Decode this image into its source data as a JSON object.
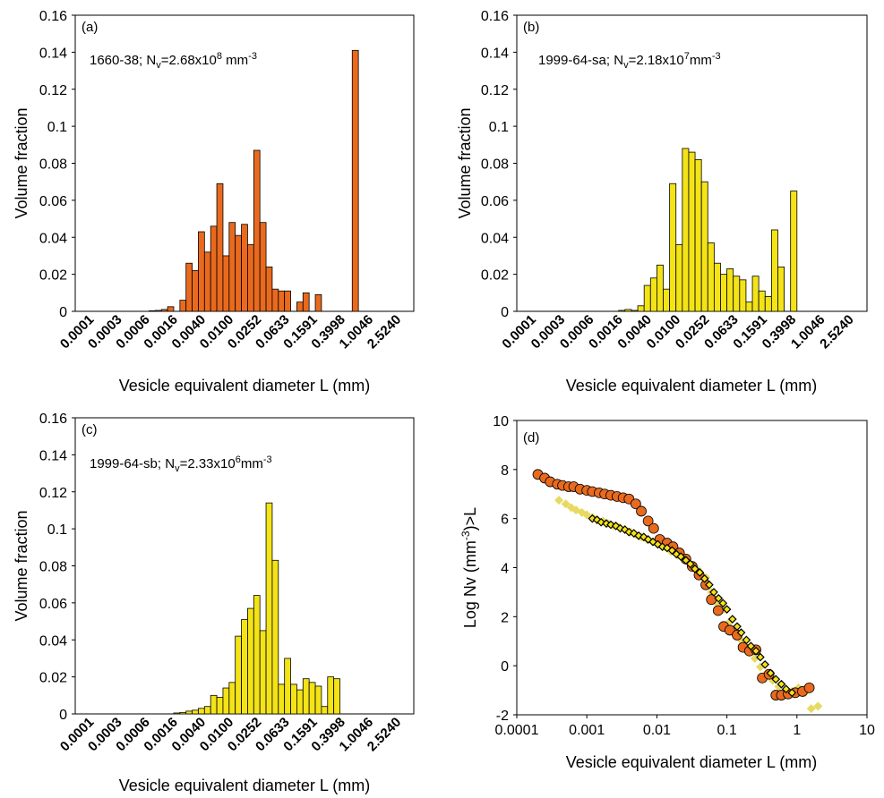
{
  "colors": {
    "orange": "#E96A1E",
    "yellow": "#F3E317",
    "light_yellow": "#E7DA63",
    "axis": "#000000"
  },
  "chart_data": [
    {
      "id": "a",
      "type": "bar",
      "panel_label": "(a)",
      "annotation": {
        "prefix": "1660-38; N",
        "sub": "v",
        "mid": "=2.68x10",
        "sup": "8",
        "suffix": " mm",
        "sup2": "-3"
      },
      "ylabel": "Volume fraction",
      "xlabel": "Vesicle equivalent diameter L (mm)",
      "ylim": [
        0,
        0.16
      ],
      "yticks": [
        "0",
        "0.02",
        "0.04",
        "0.06",
        "0.08",
        "0.1",
        "0.12",
        "0.14",
        "0.16"
      ],
      "xtick_labels": [
        "0.0001",
        "0.0003",
        "0.0006",
        "0.0016",
        "0.0040",
        "0.0100",
        "0.0252",
        "0.0633",
        "0.1591",
        "0.3998",
        "1.0046",
        "2.5240"
      ],
      "bar_color": "#E96A1E",
      "values": [
        0,
        0,
        0,
        0,
        0,
        0,
        0,
        0,
        0,
        0,
        0,
        0,
        0.0003,
        0.0005,
        0.001,
        0.0025,
        0,
        0.006,
        0.026,
        0.022,
        0.043,
        0.032,
        0.046,
        0.069,
        0.03,
        0.048,
        0.041,
        0.047,
        0.036,
        0.087,
        0.048,
        0.024,
        0.012,
        0.011,
        0.011,
        0,
        0.005,
        0.01,
        0,
        0.009,
        0,
        0,
        0,
        0,
        0,
        0.141,
        0,
        0,
        0,
        0,
        0,
        0,
        0,
        0,
        0
      ]
    },
    {
      "id": "b",
      "type": "bar",
      "panel_label": "(b)",
      "annotation": {
        "prefix": "1999-64-sa; N",
        "sub": "v",
        "mid": "=2.18x10",
        "sup": "7",
        "suffix": "mm",
        "sup2": "-3"
      },
      "ylabel": "Volume fraction",
      "xlabel": "Vesicle equivalent diameter L (mm)",
      "ylim": [
        0,
        0.16
      ],
      "yticks": [
        "0",
        "0.02",
        "0.04",
        "0.06",
        "0.08",
        "0.1",
        "0.12",
        "0.14",
        "0.16"
      ],
      "xtick_labels": [
        "0.0001",
        "0.0003",
        "0.0006",
        "0.0016",
        "0.0040",
        "0.0100",
        "0.0252",
        "0.0633",
        "0.1591",
        "0.3998",
        "1.0046",
        "2.5240"
      ],
      "bar_color": "#F3E317",
      "values": [
        0,
        0,
        0,
        0,
        0,
        0,
        0,
        0,
        0,
        0,
        0,
        0,
        0,
        0,
        0,
        0,
        0.0005,
        0.001,
        0.0005,
        0.003,
        0.014,
        0.018,
        0.025,
        0.012,
        0.069,
        0.036,
        0.088,
        0.086,
        0.082,
        0.07,
        0.037,
        0.026,
        0.02,
        0.023,
        0.019,
        0.017,
        0.005,
        0.019,
        0.011,
        0.008,
        0.044,
        0.024,
        0,
        0.065,
        0,
        0,
        0,
        0,
        0,
        0,
        0,
        0,
        0,
        0,
        0
      ]
    },
    {
      "id": "c",
      "type": "bar",
      "panel_label": "(c)",
      "annotation": {
        "prefix": "1999-64-sb; N",
        "sub": "v",
        "mid": "=2.33x10",
        "sup": "6",
        "suffix": "mm",
        "sup2": "-3"
      },
      "ylabel": "Volume fraction",
      "xlabel": "Vesicle equivalent diameter L (mm)",
      "ylim": [
        0,
        0.16
      ],
      "yticks": [
        "0",
        "0.02",
        "0.04",
        "0.06",
        "0.08",
        "0.1",
        "0.12",
        "0.14",
        "0.16"
      ],
      "xtick_labels": [
        "0.0001",
        "0.0003",
        "0.0006",
        "0.0016",
        "0.0040",
        "0.0100",
        "0.0252",
        "0.0633",
        "0.1591",
        "0.3998",
        "1.0046",
        "2.5240"
      ],
      "bar_color": "#F3E317",
      "values": [
        0,
        0,
        0,
        0,
        0,
        0,
        0,
        0,
        0,
        0,
        0,
        0,
        0,
        0,
        0,
        0,
        0.0005,
        0.0008,
        0.0015,
        0.002,
        0.003,
        0.004,
        0.01,
        0.009,
        0.014,
        0.017,
        0.042,
        0.051,
        0.057,
        0.064,
        0.045,
        0.114,
        0.083,
        0.016,
        0.03,
        0.016,
        0.013,
        0.019,
        0.017,
        0.015,
        0.004,
        0.02,
        0.019,
        0,
        0,
        0,
        0,
        0,
        0,
        0,
        0,
        0,
        0,
        0,
        0
      ]
    },
    {
      "id": "d",
      "type": "scatter",
      "panel_label": "(d)",
      "ylabel": "Log Nv (mm-3)>L",
      "ylabel_parts": {
        "prefix": "Log Nv (mm",
        "sup": "-3",
        "suffix": ")>L"
      },
      "xlabel": "Vesicle equivalent diameter L (mm)",
      "x_scale": "log",
      "xlim": [
        0.0001,
        10
      ],
      "ylim": [
        -2,
        10
      ],
      "xticks": [
        "0.0001",
        "0.001",
        "0.01",
        "0.1",
        "1",
        "10"
      ],
      "yticks": [
        "-2",
        "0",
        "2",
        "4",
        "6",
        "8",
        "10"
      ],
      "series": [
        {
          "marker": "circle",
          "color": "#E96A1E",
          "x": [
            0.0002,
            0.00025,
            0.0003,
            0.00038,
            0.00045,
            0.00055,
            0.00065,
            0.0008,
            0.001,
            0.0012,
            0.0015,
            0.0018,
            0.0022,
            0.0027,
            0.0033,
            0.004,
            0.005,
            0.006,
            0.0075,
            0.009,
            0.011,
            0.014,
            0.017,
            0.021,
            0.026,
            0.032,
            0.04,
            0.05,
            0.06,
            0.075,
            0.09,
            0.11,
            0.14,
            0.17,
            0.21,
            0.26,
            0.32,
            0.4,
            0.5,
            0.6,
            0.75,
            0.95,
            1.2,
            1.5
          ],
          "y": [
            7.8,
            7.65,
            7.5,
            7.4,
            7.35,
            7.3,
            7.3,
            7.2,
            7.15,
            7.1,
            7.05,
            7.0,
            6.95,
            6.9,
            6.85,
            6.8,
            6.6,
            6.3,
            5.9,
            5.6,
            5.15,
            5.0,
            4.85,
            4.6,
            4.35,
            4.05,
            3.7,
            3.3,
            2.7,
            2.25,
            1.6,
            1.45,
            1.25,
            0.75,
            0.6,
            0.65,
            -0.5,
            -0.35,
            -1.2,
            -1.2,
            -1.15,
            -1.1,
            -1.05,
            -0.9
          ]
        },
        {
          "marker": "diamond",
          "color": "#E7DA63",
          "x": [
            0.0004,
            0.0005,
            0.0006,
            0.0007,
            0.00085,
            0.001,
            0.0012,
            0.0014,
            0.0017,
            0.002,
            0.0024,
            0.0029,
            0.0035,
            0.0042,
            0.005,
            0.006,
            0.0072,
            0.0087,
            0.0105,
            0.013,
            0.016,
            0.02,
            0.025,
            0.031,
            0.039,
            0.05,
            0.06,
            0.075,
            0.09,
            0.11,
            0.135,
            0.165,
            0.2,
            0.25,
            0.3,
            0.37,
            0.45,
            0.55,
            0.7,
            0.85,
            1.05,
            1.3,
            1.6,
            2.0
          ],
          "y": [
            6.75,
            6.6,
            6.45,
            6.35,
            6.25,
            6.15,
            6.05,
            5.95,
            5.9,
            5.8,
            5.7,
            5.65,
            5.55,
            5.45,
            5.35,
            5.25,
            5.15,
            5.05,
            4.95,
            4.85,
            4.65,
            4.5,
            4.3,
            4.1,
            3.9,
            3.6,
            3.0,
            2.5,
            2.3,
            1.8,
            1.4,
            1.0,
            0.7,
            0.3,
            -0.05,
            -0.3,
            -0.6,
            -0.85,
            -1.05,
            -1.05,
            -0.9,
            -1.1,
            -1.75,
            -1.65
          ]
        },
        {
          "marker": "diamond",
          "color": "#F3E317",
          "stroke": "#000000",
          "x": [
            0.0012,
            0.0014,
            0.0016,
            0.0019,
            0.0022,
            0.0026,
            0.003,
            0.0035,
            0.004,
            0.0047,
            0.0055,
            0.0065,
            0.0075,
            0.0088,
            0.0103,
            0.012,
            0.014,
            0.0165,
            0.019,
            0.022,
            0.026,
            0.03,
            0.035,
            0.041,
            0.048,
            0.056,
            0.065,
            0.076,
            0.088,
            0.1,
            0.12,
            0.14,
            0.16,
            0.19,
            0.22,
            0.26,
            0.3,
            0.35,
            0.42,
            0.5,
            0.6,
            0.7,
            0.85
          ],
          "y": [
            6.0,
            5.95,
            5.85,
            5.8,
            5.75,
            5.7,
            5.6,
            5.55,
            5.45,
            5.4,
            5.3,
            5.25,
            5.15,
            5.05,
            4.95,
            4.85,
            4.8,
            4.7,
            4.55,
            4.45,
            4.3,
            4.15,
            3.95,
            3.8,
            3.55,
            3.3,
            3.0,
            2.75,
            2.55,
            2.3,
            1.9,
            1.6,
            1.35,
            1.05,
            0.8,
            0.6,
            0.35,
            0.05,
            -0.3,
            -0.55,
            -0.75,
            -0.95,
            -1.1
          ]
        }
      ]
    }
  ]
}
